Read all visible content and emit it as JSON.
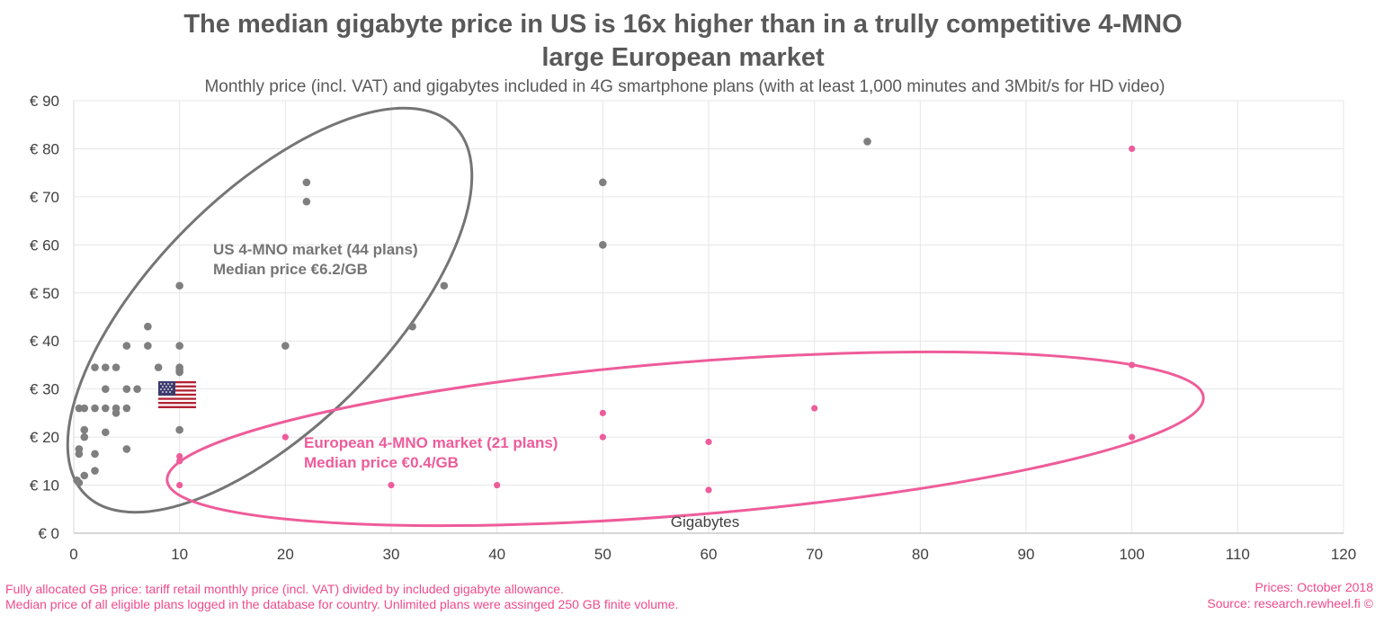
{
  "chart_data": {
    "type": "scatter",
    "title": "The median gigabyte price in US is 16x higher than in a trully competitive 4-MNO",
    "title_line2": "large European market",
    "subtitle": "Monthly price (incl. VAT) and gigabytes  included in 4G smartphone plans (with at least 1,000 minutes and 3Mbit/s for HD video)",
    "xlabel": "Gigabytes",
    "ylabel": "",
    "xlim": [
      0,
      120
    ],
    "ylim": [
      0,
      90
    ],
    "x_ticks": [
      "0",
      "10",
      "20",
      "30",
      "40",
      "50",
      "60",
      "70",
      "80",
      "90",
      "100",
      "110",
      "120"
    ],
    "y_ticks": [
      "€ 0",
      "€ 10",
      "€ 20",
      "€ 30",
      "€ 40",
      "€ 50",
      "€ 60",
      "€ 70",
      "€ 80",
      "€ 90"
    ],
    "grid": true,
    "series": [
      {
        "color": "#7f7f7f",
        "points": [
          [
            0.3,
            11
          ],
          [
            0.5,
            10.5
          ],
          [
            0.5,
            16.5
          ],
          [
            0.5,
            17.5
          ],
          [
            0.5,
            26
          ],
          [
            1,
            12
          ],
          [
            1,
            20
          ],
          [
            1,
            21.5
          ],
          [
            1,
            26
          ],
          [
            2,
            13
          ],
          [
            2,
            16.5
          ],
          [
            2,
            26
          ],
          [
            2,
            34.5
          ],
          [
            3,
            21
          ],
          [
            3,
            26
          ],
          [
            3,
            30
          ],
          [
            3,
            34.5
          ],
          [
            4,
            25
          ],
          [
            4,
            26
          ],
          [
            4,
            34.5
          ],
          [
            5,
            17.5
          ],
          [
            5,
            26
          ],
          [
            5,
            30
          ],
          [
            5,
            39
          ],
          [
            6,
            30
          ],
          [
            7,
            39
          ],
          [
            7,
            43
          ],
          [
            8,
            34.5
          ],
          [
            10,
            21.5
          ],
          [
            10,
            33.5
          ],
          [
            10,
            34
          ],
          [
            10,
            34.5
          ],
          [
            10,
            39
          ],
          [
            10,
            51.5
          ],
          [
            20,
            39
          ],
          [
            22,
            69
          ],
          [
            22,
            73
          ],
          [
            32,
            43
          ],
          [
            35,
            51.5
          ],
          [
            50,
            60
          ],
          [
            50,
            73
          ],
          [
            75,
            81.5
          ]
        ]
      },
      {
        "color": "#ee5c9a",
        "points": [
          [
            10,
            10
          ],
          [
            10,
            15
          ],
          [
            10,
            16
          ],
          [
            20,
            20
          ],
          [
            30,
            10
          ],
          [
            40,
            10
          ],
          [
            50,
            20
          ],
          [
            50,
            25
          ],
          [
            60,
            9
          ],
          [
            60,
            19
          ],
          [
            70,
            26
          ],
          [
            100,
            20
          ],
          [
            100,
            35
          ],
          [
            100,
            80
          ]
        ]
      }
    ],
    "annotations": {
      "us_line1": "US 4-MNO market (44 plans)",
      "us_line2": "Median price €6.2/GB",
      "eu_line1": "European 4-MNO market (21 plans)",
      "eu_line2": "Median price €0.4/GB",
      "us_color": "#757575",
      "eu_color": "#ee5c9a"
    }
  },
  "footnotes": {
    "line1": "Fully allocated GB price: tariff retail monthly price (incl. VAT)  divided by included gigabyte allowance.",
    "line2": "Median price of all eligible plans logged in the database for country. Unlimited plans were assinged 250 GB finite volume.",
    "prices": "Prices: October 2018",
    "source": "Source: research.rewheel.fi  ©"
  },
  "icons": {
    "us_flag": "us-flag-icon"
  }
}
